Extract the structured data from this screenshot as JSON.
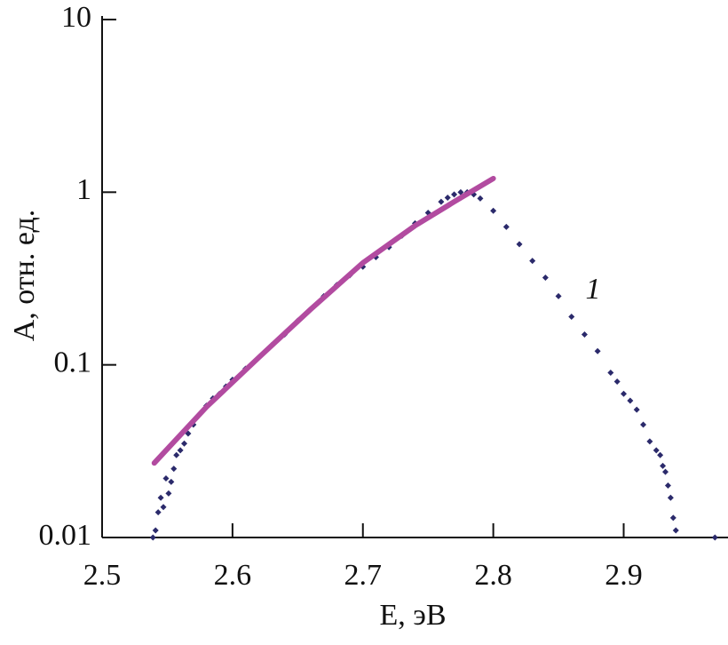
{
  "chart_data": {
    "type": "scatter",
    "xlabel": "E, эВ",
    "ylabel": "A, отн. ед.",
    "annotation": "1",
    "log_y": true,
    "xlim": [
      2.5,
      2.98
    ],
    "ylim": [
      0.01,
      10
    ],
    "xticks": [
      2.5,
      2.6,
      2.7,
      2.8,
      2.9
    ],
    "yticks": [
      0.01,
      0.1,
      1,
      10
    ],
    "series": [
      {
        "color": "#2b2a6b",
        "mode": "markers",
        "x": [
          2.539,
          2.541,
          2.543,
          2.545,
          2.547,
          2.549,
          2.551,
          2.553,
          2.555,
          2.557,
          2.56,
          2.563,
          2.566,
          2.57,
          2.575,
          2.58,
          2.585,
          2.59,
          2.595,
          2.6,
          2.61,
          2.62,
          2.63,
          2.64,
          2.65,
          2.66,
          2.67,
          2.68,
          2.69,
          2.7,
          2.71,
          2.72,
          2.73,
          2.74,
          2.75,
          2.76,
          2.765,
          2.77,
          2.775,
          2.78,
          2.785,
          2.79,
          2.8,
          2.81,
          2.82,
          2.83,
          2.84,
          2.85,
          2.86,
          2.87,
          2.88,
          2.89,
          2.895,
          2.9,
          2.905,
          2.91,
          2.915,
          2.92,
          2.925,
          2.928,
          2.93,
          2.932,
          2.934,
          2.936,
          2.938,
          2.94,
          2.97
        ],
        "values": [
          0.01,
          0.011,
          0.014,
          0.017,
          0.015,
          0.022,
          0.018,
          0.021,
          0.025,
          0.03,
          0.032,
          0.035,
          0.04,
          0.045,
          0.052,
          0.058,
          0.064,
          0.068,
          0.075,
          0.082,
          0.095,
          0.11,
          0.13,
          0.15,
          0.18,
          0.21,
          0.25,
          0.29,
          0.33,
          0.37,
          0.42,
          0.48,
          0.56,
          0.66,
          0.76,
          0.88,
          0.93,
          0.97,
          1.0,
          1.0,
          0.97,
          0.92,
          0.78,
          0.63,
          0.5,
          0.4,
          0.32,
          0.25,
          0.19,
          0.15,
          0.12,
          0.09,
          0.08,
          0.068,
          0.062,
          0.055,
          0.045,
          0.036,
          0.032,
          0.03,
          0.026,
          0.024,
          0.02,
          0.017,
          0.013,
          0.011,
          0.01
        ]
      },
      {
        "color": "#b24ba0",
        "mode": "line",
        "x": [
          2.54,
          2.58,
          2.62,
          2.66,
          2.7,
          2.74,
          2.77,
          2.8
        ],
        "values": [
          0.027,
          0.057,
          0.11,
          0.21,
          0.39,
          0.64,
          0.88,
          1.2
        ]
      }
    ]
  }
}
